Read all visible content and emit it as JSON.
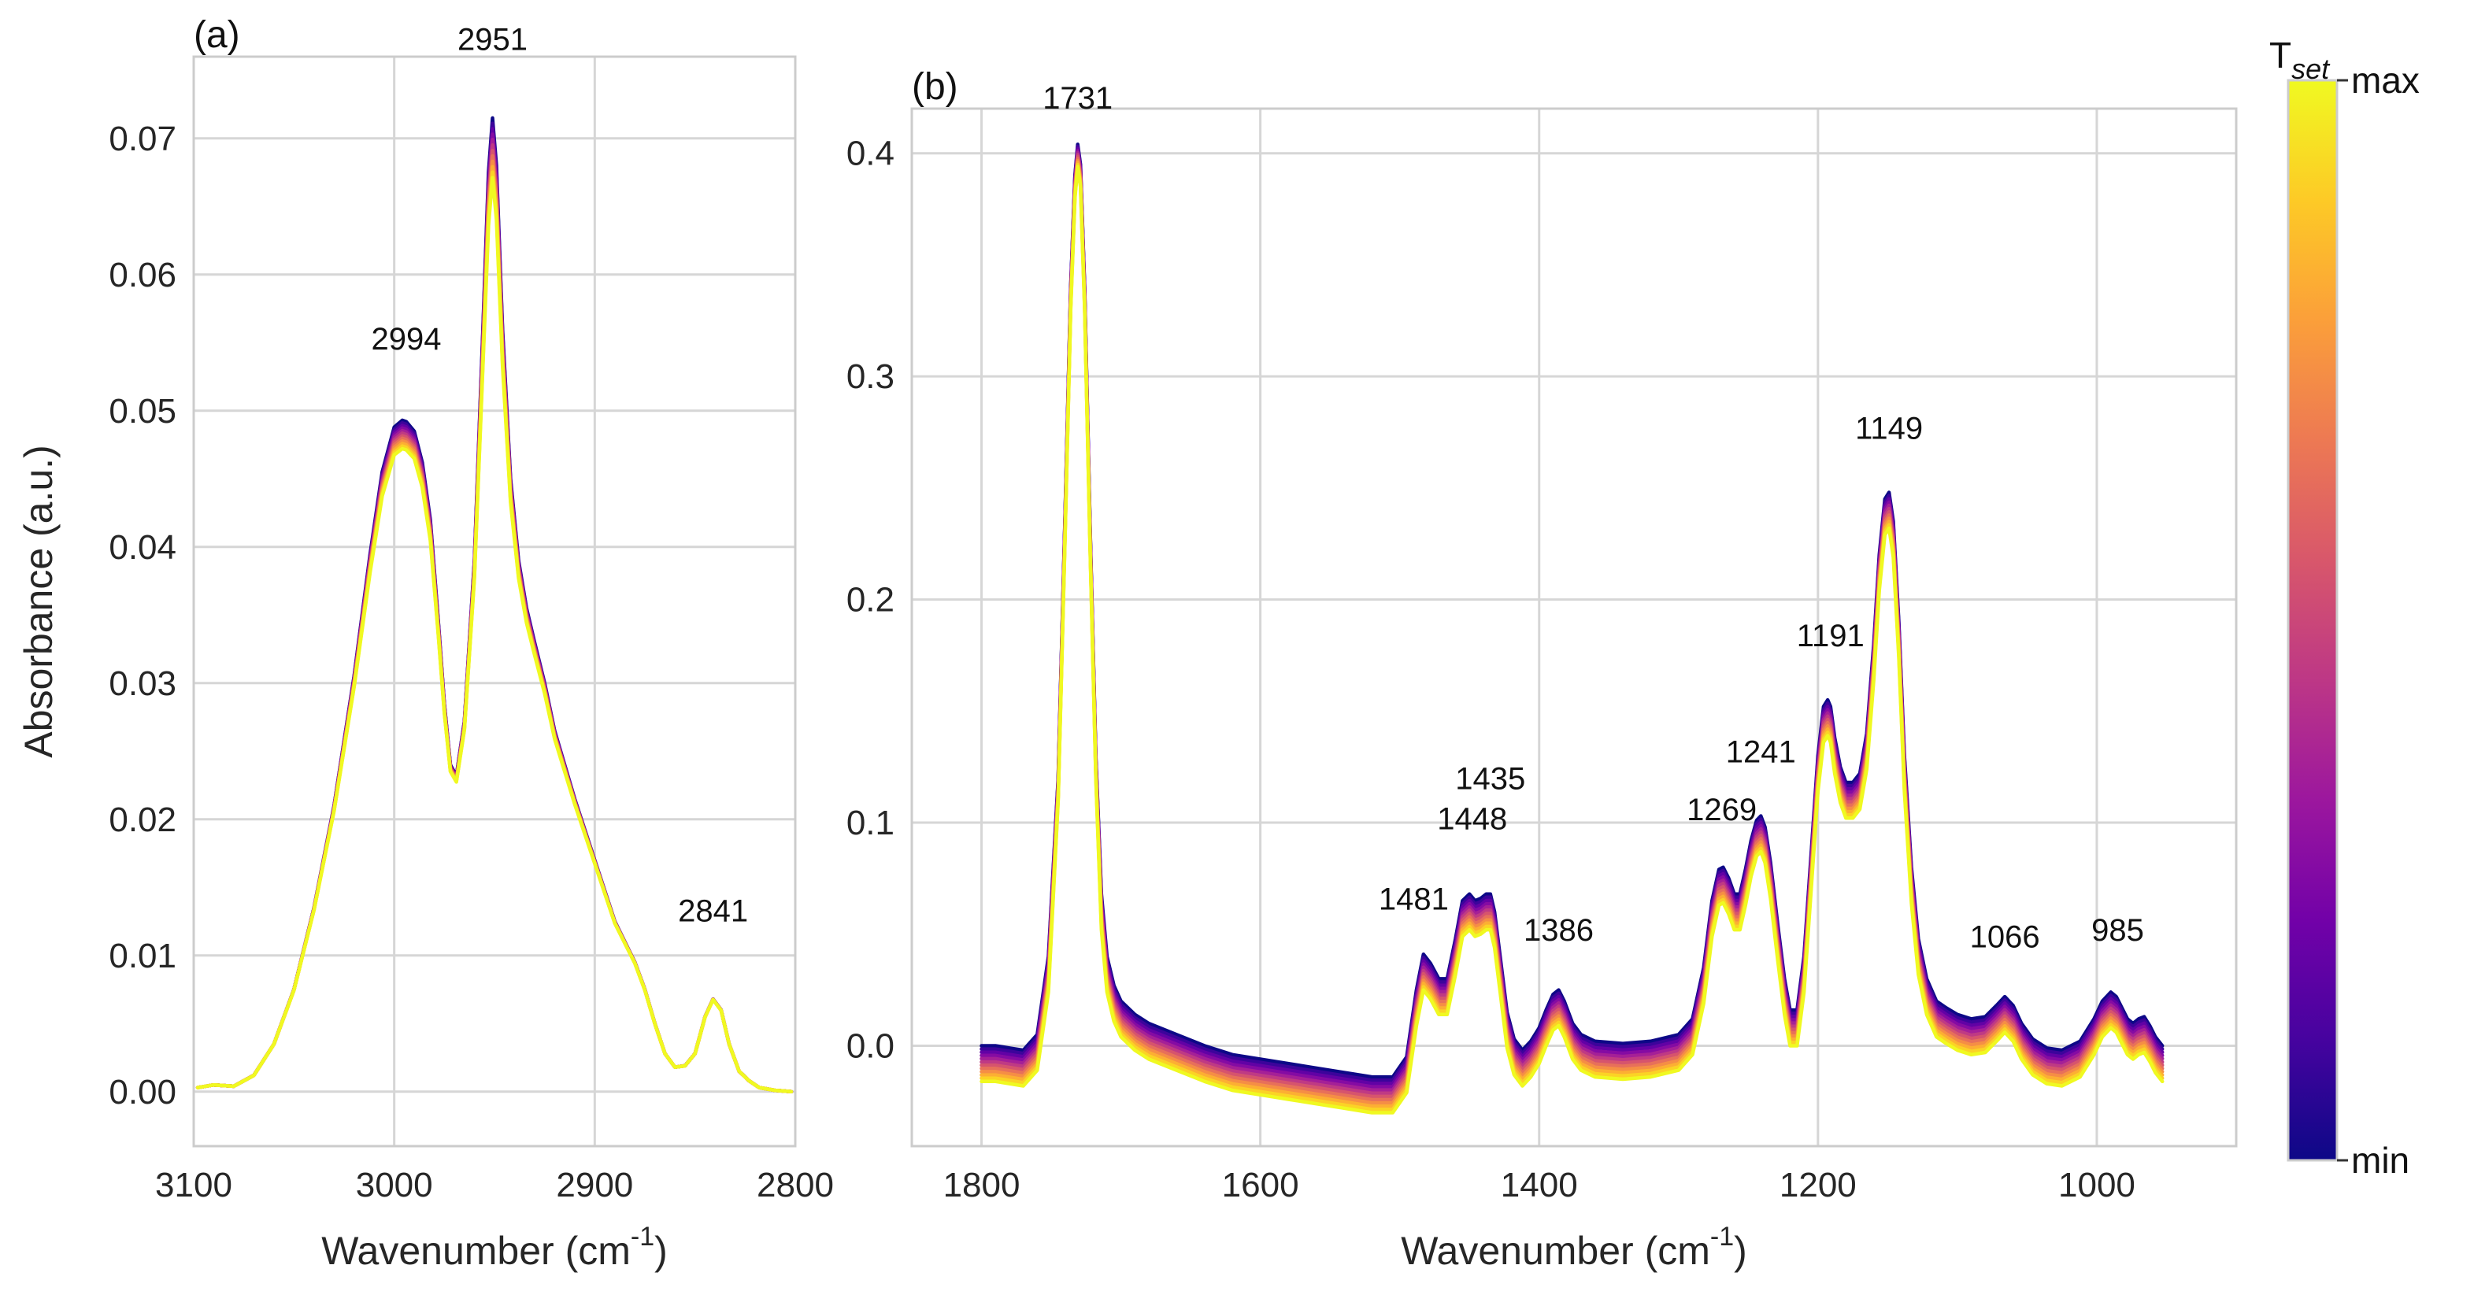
{
  "chart_data": [
    {
      "type": "line",
      "panel_label": "(a)",
      "xlabel": "Wavenumber (cm",
      "xlabel_sup": "-1",
      "xlabel_close": ")",
      "ylabel": "Absorbance (a.u.)",
      "xlim": [
        3100,
        2800
      ],
      "ylim": [
        -0.004,
        0.076
      ],
      "xticks": [
        3100,
        3000,
        2900,
        2800
      ],
      "xtick_labels": [
        "3100",
        "3000",
        "2900",
        "2800"
      ],
      "yticks": [
        0,
        0.01,
        0.02,
        0.03,
        0.04,
        0.05,
        0.06,
        0.07
      ],
      "ytick_labels": [
        "0.00",
        "0.01",
        "0.02",
        "0.03",
        "0.04",
        "0.05",
        "0.06",
        "0.07"
      ],
      "grid": true,
      "series_count": 12,
      "peaks": [
        {
          "label": "2994",
          "x": 2994,
          "y": 0.0545
        },
        {
          "label": "2951",
          "x": 2951,
          "y": 0.0765
        },
        {
          "label": "2841",
          "x": 2841,
          "y": 0.0125
        }
      ],
      "reference_curve": {
        "x": [
          3098,
          3090,
          3080,
          3070,
          3060,
          3050,
          3040,
          3030,
          3020,
          3012,
          3006,
          3000,
          2996,
          2994,
          2990,
          2986,
          2982,
          2978,
          2975,
          2972,
          2969,
          2965,
          2960,
          2956,
          2953,
          2951,
          2949,
          2946,
          2942,
          2938,
          2934,
          2930,
          2925,
          2920,
          2910,
          2900,
          2890,
          2880,
          2875,
          2870,
          2865,
          2860,
          2855,
          2850,
          2845,
          2841,
          2837,
          2833,
          2828,
          2823,
          2818,
          2810,
          2802
        ],
        "y": [
          0.0003,
          0.0005,
          0.0004,
          0.0012,
          0.0035,
          0.0075,
          0.0135,
          0.021,
          0.0305,
          0.0395,
          0.0455,
          0.0488,
          0.0493,
          0.0492,
          0.0485,
          0.0462,
          0.042,
          0.0345,
          0.0285,
          0.024,
          0.0232,
          0.0272,
          0.039,
          0.055,
          0.0675,
          0.0715,
          0.068,
          0.056,
          0.045,
          0.039,
          0.0355,
          0.033,
          0.03,
          0.0265,
          0.0215,
          0.017,
          0.0125,
          0.0095,
          0.0075,
          0.005,
          0.0028,
          0.0018,
          0.0019,
          0.0028,
          0.0055,
          0.0068,
          0.006,
          0.0035,
          0.0015,
          0.0008,
          0.0003,
          0.0001,
          0.0
        ]
      }
    },
    {
      "type": "line",
      "panel_label": "(b)",
      "xlabel": "Wavenumber (cm",
      "xlabel_sup": "-1",
      "xlabel_close": ")",
      "xlim": [
        1850,
        900
      ],
      "ylim": [
        -0.045,
        0.42
      ],
      "xticks": [
        1800,
        1600,
        1400,
        1200,
        1000
      ],
      "xtick_labels": [
        "1800",
        "1600",
        "1400",
        "1200",
        "1000"
      ],
      "yticks": [
        0,
        0.1,
        0.2,
        0.3,
        0.4
      ],
      "ytick_labels": [
        "0.0",
        "0.1",
        "0.2",
        "0.3",
        "0.4"
      ],
      "grid": true,
      "series_count": 12,
      "peaks": [
        {
          "label": "1731",
          "x": 1731,
          "y": 0.42
        },
        {
          "label": "1481",
          "x": 1490,
          "y": 0.061
        },
        {
          "label": "1448",
          "x": 1448,
          "y": 0.097
        },
        {
          "label": "1435",
          "x": 1435,
          "y": 0.115
        },
        {
          "label": "1386",
          "x": 1386,
          "y": 0.047
        },
        {
          "label": "1269",
          "x": 1269,
          "y": 0.101
        },
        {
          "label": "1241",
          "x": 1241,
          "y": 0.127
        },
        {
          "label": "1191",
          "x": 1191,
          "y": 0.179
        },
        {
          "label": "1149",
          "x": 1149,
          "y": 0.272
        },
        {
          "label": "1066",
          "x": 1066,
          "y": 0.044
        },
        {
          "label": "985",
          "x": 985,
          "y": 0.047
        }
      ],
      "reference_curve": {
        "x": [
          1800,
          1790,
          1780,
          1770,
          1760,
          1752,
          1745,
          1740,
          1736,
          1733,
          1731,
          1729,
          1726,
          1722,
          1718,
          1714,
          1710,
          1705,
          1700,
          1690,
          1680,
          1660,
          1640,
          1620,
          1600,
          1580,
          1560,
          1540,
          1520,
          1505,
          1495,
          1488,
          1483,
          1478,
          1472,
          1466,
          1460,
          1455,
          1450,
          1446,
          1442,
          1438,
          1435,
          1432,
          1428,
          1423,
          1418,
          1412,
          1406,
          1400,
          1395,
          1390,
          1386,
          1382,
          1376,
          1370,
          1360,
          1340,
          1320,
          1300,
          1290,
          1282,
          1276,
          1271,
          1268,
          1264,
          1260,
          1256,
          1252,
          1248,
          1244,
          1241,
          1238,
          1234,
          1229,
          1224,
          1220,
          1215,
          1210,
          1205,
          1200,
          1196,
          1193,
          1191,
          1188,
          1184,
          1180,
          1175,
          1170,
          1165,
          1160,
          1156,
          1152,
          1149,
          1146,
          1142,
          1138,
          1133,
          1128,
          1122,
          1115,
          1108,
          1100,
          1090,
          1080,
          1072,
          1066,
          1060,
          1054,
          1046,
          1036,
          1025,
          1012,
          1002,
          996,
          990,
          986,
          982,
          978,
          974,
          970,
          966,
          962,
          958,
          953
        ],
        "y": [
          0.0,
          0.0,
          -0.001,
          -0.002,
          0.005,
          0.04,
          0.12,
          0.24,
          0.34,
          0.39,
          0.404,
          0.395,
          0.34,
          0.23,
          0.13,
          0.068,
          0.04,
          0.027,
          0.02,
          0.014,
          0.01,
          0.005,
          0.0,
          -0.004,
          -0.006,
          -0.008,
          -0.01,
          -0.012,
          -0.014,
          -0.014,
          -0.005,
          0.025,
          0.041,
          0.037,
          0.03,
          0.03,
          0.048,
          0.065,
          0.068,
          0.065,
          0.066,
          0.068,
          0.068,
          0.06,
          0.04,
          0.015,
          0.003,
          -0.002,
          0.002,
          0.008,
          0.016,
          0.023,
          0.025,
          0.02,
          0.01,
          0.005,
          0.002,
          0.001,
          0.002,
          0.005,
          0.012,
          0.035,
          0.065,
          0.079,
          0.08,
          0.075,
          0.068,
          0.068,
          0.079,
          0.092,
          0.101,
          0.103,
          0.098,
          0.082,
          0.055,
          0.03,
          0.016,
          0.016,
          0.04,
          0.085,
          0.13,
          0.152,
          0.155,
          0.152,
          0.138,
          0.125,
          0.118,
          0.118,
          0.122,
          0.14,
          0.18,
          0.22,
          0.245,
          0.248,
          0.235,
          0.19,
          0.13,
          0.08,
          0.048,
          0.03,
          0.02,
          0.017,
          0.014,
          0.012,
          0.013,
          0.018,
          0.022,
          0.018,
          0.01,
          0.003,
          -0.001,
          -0.002,
          0.002,
          0.012,
          0.02,
          0.024,
          0.022,
          0.017,
          0.012,
          0.01,
          0.012,
          0.013,
          0.009,
          0.004,
          0.0
        ]
      }
    }
  ],
  "colorbar": {
    "title": "T",
    "title_sub": "set",
    "max_label": "max",
    "min_label": "min",
    "colormap": "plasma",
    "colors": [
      "#0d0887",
      "#46039f",
      "#7201a8",
      "#9c179e",
      "#bd3786",
      "#d8576b",
      "#ed7953",
      "#fb9f3a",
      "#fdca26",
      "#f0f921"
    ]
  }
}
